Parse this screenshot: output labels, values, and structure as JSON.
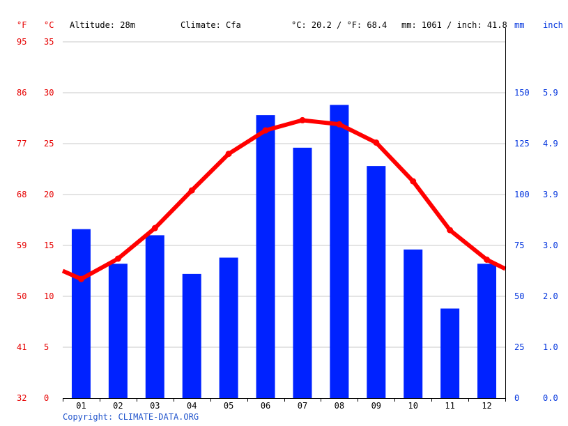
{
  "header": {
    "unit_f": "°F",
    "unit_c": "°C",
    "altitude": "Altitude: 28m",
    "climate": "Climate: Cfa",
    "temp_avg": "°C: 20.2 / °F: 68.4",
    "precip_avg": "mm: 1061 / inch: 41.8",
    "unit_mm": "mm",
    "unit_inch": "inch"
  },
  "footer": {
    "copyright": "Copyright: CLIMATE-DATA.ORG"
  },
  "colors": {
    "temperature": "#ff0000",
    "precipitation": "#0022ff",
    "grid": "#c8c8c8",
    "left_labels": "#e60000",
    "right_labels": "#0033dd"
  },
  "chart_data": {
    "type": "bar",
    "categories": [
      "01",
      "02",
      "03",
      "04",
      "05",
      "06",
      "07",
      "08",
      "09",
      "10",
      "11",
      "12"
    ],
    "series": [
      {
        "type": "bar",
        "axis": "right",
        "values": [
          83,
          66,
          80,
          61,
          69,
          139,
          123,
          144,
          114,
          73,
          44,
          66
        ]
      },
      {
        "type": "line",
        "axis": "left",
        "values": [
          11.7,
          13.7,
          16.7,
          20.4,
          24.0,
          26.3,
          27.3,
          26.9,
          25.1,
          21.3,
          16.5,
          13.6
        ]
      }
    ],
    "line_ends": {
      "start": 12.5,
      "end": 12.7
    },
    "ylim_left": [
      0,
      35
    ],
    "ylim_right": [
      0,
      175
    ],
    "left_ticks_c": [
      "0",
      "5",
      "10",
      "15",
      "20",
      "25",
      "30",
      "35"
    ],
    "left_ticks_f": [
      "32",
      "41",
      "50",
      "59",
      "68",
      "77",
      "86",
      "95"
    ],
    "right_ticks_mm": [
      "0",
      "25",
      "50",
      "75",
      "100",
      "125",
      "150"
    ],
    "right_ticks_inch": [
      "0.0",
      "1.0",
      "2.0",
      "3.0",
      "3.9",
      "4.9",
      "5.9"
    ],
    "grid": true
  }
}
